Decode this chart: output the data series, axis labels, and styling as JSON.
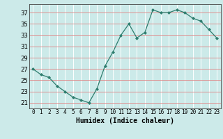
{
  "x": [
    0,
    1,
    2,
    3,
    4,
    5,
    6,
    7,
    8,
    9,
    10,
    11,
    12,
    13,
    14,
    15,
    16,
    17,
    18,
    19,
    20,
    21,
    22,
    23
  ],
  "y": [
    27,
    26,
    25.5,
    24,
    23,
    22,
    21.5,
    21,
    23.5,
    27.5,
    30,
    33,
    35,
    32.5,
    33.5,
    37.5,
    37,
    37,
    37.5,
    37,
    36,
    35.5,
    34,
    32.5
  ],
  "line_color": "#2e7d6e",
  "marker": "D",
  "marker_size": 2.0,
  "bg_color": "#cceae9",
  "grid_v_color": "#ffffff",
  "grid_h_color": "#e08080",
  "xlabel": "Humidex (Indice chaleur)",
  "xlim": [
    -0.5,
    23.5
  ],
  "ylim": [
    20.0,
    38.5
  ],
  "yticks": [
    21,
    23,
    25,
    27,
    29,
    31,
    33,
    35,
    37
  ],
  "xticks": [
    0,
    1,
    2,
    3,
    4,
    5,
    6,
    7,
    8,
    9,
    10,
    11,
    12,
    13,
    14,
    15,
    16,
    17,
    18,
    19,
    20,
    21,
    22,
    23
  ],
  "xlabel_fontsize": 7,
  "ytick_fontsize": 6.5,
  "xtick_fontsize": 5.5
}
